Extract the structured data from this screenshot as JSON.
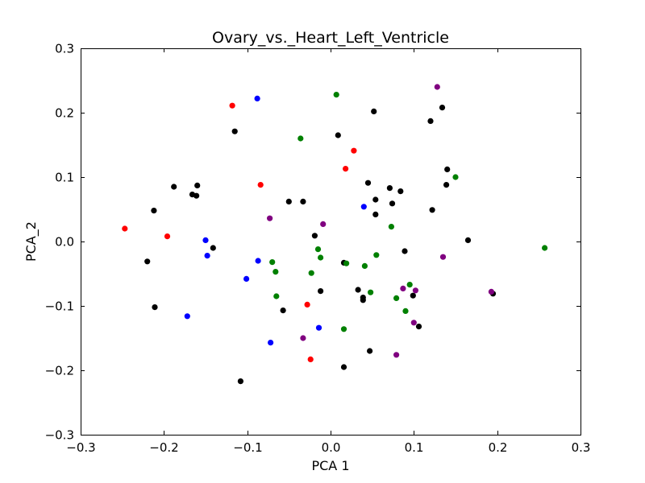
{
  "chart_data": {
    "type": "scatter",
    "title": "Ovary_vs._Heart_Left_Ventricle",
    "xlabel": "PCA 1",
    "ylabel": "PCA_2",
    "xlim": [
      -0.3,
      0.3
    ],
    "ylim": [
      -0.3,
      0.3
    ],
    "xticks": [
      -0.3,
      -0.2,
      -0.1,
      0.0,
      0.1,
      0.2,
      0.3
    ],
    "yticks": [
      -0.3,
      -0.2,
      -0.1,
      0.0,
      0.1,
      0.2,
      0.3
    ],
    "xtick_labels": [
      "−0.3",
      "−0.2",
      "−0.1",
      "0.0",
      "0.1",
      "0.2",
      "0.3"
    ],
    "ytick_labels": [
      "−0.3",
      "−0.2",
      "−0.1",
      "0.0",
      "0.1",
      "0.2",
      "0.3"
    ],
    "grid": false,
    "legend": "none",
    "series": [
      {
        "color": "#000000",
        "points": [
          [
            -0.115,
            0.171
          ],
          [
            -0.188,
            0.085
          ],
          [
            -0.166,
            0.073
          ],
          [
            -0.161,
            0.071
          ],
          [
            -0.16,
            0.087
          ],
          [
            -0.141,
            -0.01
          ],
          [
            -0.212,
            0.048
          ],
          [
            -0.22,
            -0.031
          ],
          [
            -0.211,
            -0.102
          ],
          [
            -0.108,
            -0.217
          ],
          [
            -0.057,
            -0.107
          ],
          [
            -0.05,
            0.062
          ],
          [
            -0.033,
            0.062
          ],
          [
            -0.019,
            0.009
          ],
          [
            -0.012,
            -0.077
          ],
          [
            0.009,
            0.165
          ],
          [
            0.016,
            -0.033
          ],
          [
            0.016,
            -0.195
          ],
          [
            0.033,
            -0.075
          ],
          [
            0.039,
            -0.087
          ],
          [
            0.039,
            -0.091
          ],
          [
            0.045,
            0.091
          ],
          [
            0.047,
            -0.17
          ],
          [
            0.052,
            0.202
          ],
          [
            0.054,
            0.065
          ],
          [
            0.054,
            0.042
          ],
          [
            0.071,
            0.083
          ],
          [
            0.074,
            0.059
          ],
          [
            0.084,
            0.078
          ],
          [
            0.089,
            -0.015
          ],
          [
            0.099,
            -0.084
          ],
          [
            0.106,
            -0.132
          ],
          [
            0.12,
            0.187
          ],
          [
            0.122,
            0.049
          ],
          [
            0.134,
            0.208
          ],
          [
            0.139,
            0.088
          ],
          [
            0.14,
            0.112
          ],
          [
            0.165,
            0.002
          ],
          [
            0.195,
            -0.081
          ]
        ]
      },
      {
        "color": "#ff0000",
        "points": [
          [
            -0.118,
            0.211
          ],
          [
            -0.247,
            0.02
          ],
          [
            -0.196,
            0.008
          ],
          [
            -0.084,
            0.088
          ],
          [
            -0.028,
            -0.098
          ],
          [
            -0.024,
            -0.183
          ],
          [
            0.018,
            0.113
          ],
          [
            0.028,
            0.141
          ]
        ]
      },
      {
        "color": "#0000ff",
        "points": [
          [
            -0.088,
            0.222
          ],
          [
            -0.15,
            0.002
          ],
          [
            -0.148,
            -0.022
          ],
          [
            -0.172,
            -0.116
          ],
          [
            -0.101,
            -0.058
          ],
          [
            -0.087,
            -0.03
          ],
          [
            -0.072,
            -0.157
          ],
          [
            -0.014,
            -0.134
          ],
          [
            0.04,
            0.054
          ]
        ]
      },
      {
        "color": "#008000",
        "points": [
          [
            0.007,
            0.228
          ],
          [
            -0.036,
            0.16
          ],
          [
            -0.07,
            -0.032
          ],
          [
            -0.066,
            -0.047
          ],
          [
            -0.065,
            -0.085
          ],
          [
            -0.023,
            -0.049
          ],
          [
            -0.015,
            -0.012
          ],
          [
            -0.012,
            -0.025
          ],
          [
            0.016,
            -0.136
          ],
          [
            0.019,
            -0.034
          ],
          [
            0.041,
            -0.038
          ],
          [
            0.048,
            -0.079
          ],
          [
            0.055,
            -0.021
          ],
          [
            0.073,
            0.023
          ],
          [
            0.079,
            -0.088
          ],
          [
            0.09,
            -0.108
          ],
          [
            0.095,
            -0.067
          ],
          [
            0.15,
            0.1
          ],
          [
            0.257,
            -0.01
          ]
        ]
      },
      {
        "color": "#800080",
        "points": [
          [
            -0.073,
            0.036
          ],
          [
            -0.033,
            -0.15
          ],
          [
            -0.009,
            0.027
          ],
          [
            0.079,
            -0.176
          ],
          [
            0.087,
            -0.073
          ],
          [
            0.1,
            -0.126
          ],
          [
            0.102,
            -0.076
          ],
          [
            0.128,
            0.24
          ],
          [
            0.135,
            -0.024
          ],
          [
            0.193,
            -0.078
          ]
        ]
      }
    ]
  }
}
